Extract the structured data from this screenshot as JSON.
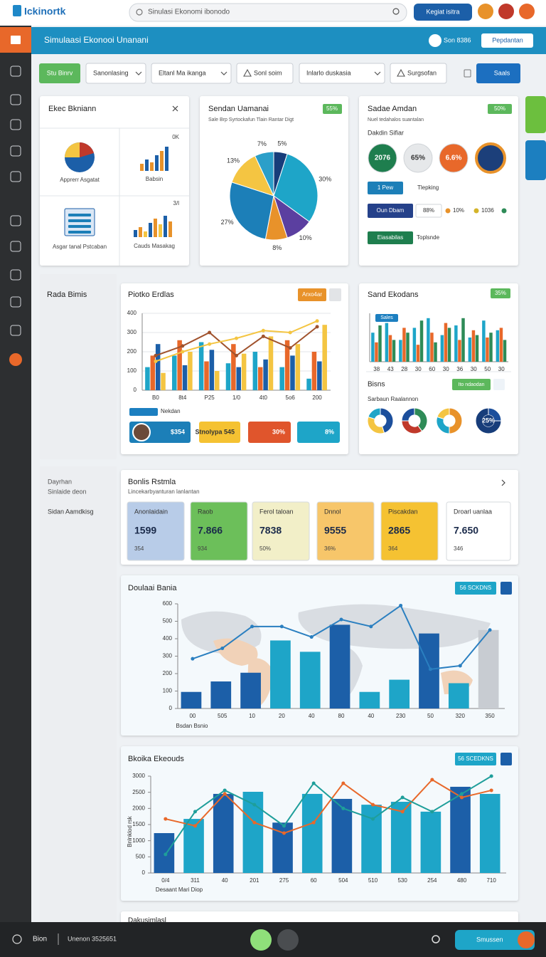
{
  "header": {
    "logo": "Ickinortk",
    "search": "Sinulasi Ekonomi ibonodo",
    "button": "Kegiat isitra"
  },
  "banner": {
    "title": "Simulaasi Ekonooi Unanani",
    "user": "Son 8386",
    "button": "Pepdantan"
  },
  "filters": {
    "button": "Stu Binrv",
    "dropdowns": [
      "Sanonlasing",
      "Eltanl Ma ikanga",
      "Inlarlo duskasia"
    ],
    "inputs": [
      "Sonl soim",
      "Surgsofan"
    ],
    "action": "Saals"
  },
  "overview": {
    "title": "Ekec Bkniann",
    "tiles": [
      {
        "label": "Apprerr Asgatat"
      },
      {
        "label": "Babsin",
        "note": "0K"
      },
      {
        "label": "Asgar tanal Pstcaban"
      },
      {
        "label": "Cauds Masakag",
        "note": "3/l"
      }
    ]
  },
  "summary": {
    "title": "Sadae Amdan",
    "badge": "50%",
    "subtitle": "Nuel tedahalos suantalan",
    "heading": "Dakdin Sifiar",
    "circles": [
      "2076",
      "65%",
      "6.6%"
    ],
    "rows": [
      {
        "button": "1 Pew",
        "text": "Tlepking"
      },
      {
        "button": "Oun Dbam",
        "text": "88%",
        "legend": [
          "10%",
          "1036"
        ]
      },
      {
        "button": "Eiasabilas",
        "text": "Toplsnde"
      }
    ]
  },
  "side_labels": [
    "Rada Bimis",
    "Dayrhan",
    "Sinlaide deon",
    "Sidan Aamdkisg"
  ],
  "trend_footer": {
    "tag": "Nekdan",
    "stats": [
      "$354",
      "Stnolypa 545",
      "30%",
      "8%"
    ]
  },
  "business": {
    "title": "Bisns",
    "button": "Ito ndaodan",
    "subtitle": "Sarbaun Raalannon"
  },
  "kpis": {
    "title": "Bonlis Rstmla",
    "subtitle": "Lincekarbyanturan lanlantan",
    "tiles": [
      {
        "label": "Anonlaidain",
        "value": "1599",
        "note": "354"
      },
      {
        "label": "Raob",
        "value": "7.866",
        "note": "934"
      },
      {
        "label": "Ferol taloan",
        "value": "7838",
        "note": "50%"
      },
      {
        "label": "Dnnol",
        "value": "9555",
        "note": "36%"
      },
      {
        "label": "Piscakdan",
        "value": "2865",
        "note": "364"
      },
      {
        "label": "Droarl uanlaa",
        "value": "7.650",
        "note": "346"
      }
    ]
  },
  "partial_card": "Dakusimlasl",
  "footer": {
    "left": "Bion",
    "info": "Unenon 3525651",
    "button": "Smussen"
  },
  "chart_data": [
    {
      "type": "pie",
      "title": "Sendan Uamanai",
      "subtitle": "Sale Brp Syrtockafun Tlain Rantar Digt",
      "badge": "55%",
      "values": [
        5,
        30,
        10,
        8,
        27,
        13,
        7
      ],
      "value_labels": [
        "5%",
        "30%",
        "10%",
        "8%",
        "27%",
        "13%",
        "7%"
      ],
      "colors": [
        "#173d7a",
        "#1ea5c8",
        "#5b3fa0",
        "#e8922a",
        "#1c7fb8",
        "#f4c542",
        "#2b9fc9"
      ]
    },
    {
      "type": "bar",
      "title": "Piotko Erdlas",
      "button": "Arxo4ar",
      "grid": true,
      "categories": [
        "B0",
        "8t4",
        "P25",
        "1/0",
        "4t0",
        "5o6",
        "200"
      ],
      "ylim": [
        0,
        400
      ],
      "yticks": [
        0,
        100,
        200,
        300,
        400
      ],
      "series": [
        {
          "color": "#1ea5c8",
          "values": [
            120,
            180,
            250,
            140,
            200,
            120,
            60
          ]
        },
        {
          "color": "#e8682a",
          "values": [
            180,
            260,
            150,
            240,
            120,
            260,
            200
          ]
        },
        {
          "color": "#1c5fa8",
          "values": [
            240,
            130,
            210,
            120,
            160,
            180,
            150
          ]
        },
        {
          "color": "#f4c542",
          "values": [
            90,
            200,
            100,
            190,
            280,
            240,
            340
          ]
        },
        {
          "type": "line",
          "color": "#a0522d",
          "values": [
            180,
            230,
            300,
            180,
            280,
            220,
            330
          ]
        },
        {
          "type": "line",
          "color": "#f4c542",
          "values": [
            150,
            200,
            240,
            270,
            310,
            300,
            360
          ]
        }
      ]
    },
    {
      "type": "bar",
      "title": "Sand Ekodans",
      "badge": "35%",
      "tag": "Sales",
      "grid": false,
      "categories": [
        "38",
        "43",
        "28",
        "30",
        "60",
        "30",
        "36",
        "30",
        "50",
        "30"
      ],
      "ylim": [
        0,
        100
      ],
      "series": [
        {
          "color": "#1ea5c8",
          "values": [
            60,
            80,
            45,
            70,
            90,
            55,
            75,
            50,
            85,
            65
          ]
        },
        {
          "color": "#e8682a",
          "values": [
            40,
            55,
            70,
            35,
            60,
            80,
            45,
            65,
            50,
            70
          ]
        },
        {
          "color": "#2e8b57",
          "values": [
            75,
            45,
            60,
            85,
            40,
            70,
            90,
            55,
            60,
            45
          ]
        }
      ]
    },
    {
      "type": "pie",
      "donut": true,
      "values": [
        45,
        35,
        20
      ],
      "colors": [
        "#1c4f9c",
        "#f4c542",
        "#1ea5c8"
      ]
    },
    {
      "type": "pie",
      "donut": true,
      "values": [
        40,
        35,
        25
      ],
      "colors": [
        "#2e8b57",
        "#c0392b",
        "#1c4f9c"
      ]
    },
    {
      "type": "pie",
      "donut": true,
      "values": [
        50,
        30,
        20
      ],
      "colors": [
        "#e8922a",
        "#1ea5c8",
        "#f4c542"
      ]
    },
    {
      "type": "pie",
      "donut": true,
      "values": [
        25,
        75
      ],
      "value_labels": [
        "25%",
        null
      ],
      "colors": [
        "#1c4f9c",
        "#173d7a"
      ]
    },
    {
      "type": "bar",
      "title": "Doulaai Bania",
      "button": "56 SCKDNS",
      "x_label": "Bsdan Bsnio",
      "grid": false,
      "categories": [
        "00",
        "505",
        "10",
        "20",
        "40",
        "80",
        "40",
        "230",
        "50",
        "320",
        "350"
      ],
      "ylim": [
        0,
        600
      ],
      "yticks": [
        0,
        100,
        200,
        300,
        400,
        500,
        600
      ],
      "series": [
        {
          "colors": [
            "#1c5fa8",
            "#1c5fa8",
            "#1c5fa8",
            "#1ea5c8",
            "#1ea5c8",
            "#1c5fa8",
            "#1ea5c8",
            "#1ea5c8",
            "#1c5fa8",
            "#1ea5c8",
            "#c8ccd2"
          ],
          "values": [
            95,
            155,
            205,
            390,
            325,
            480,
            95,
            165,
            430,
            145,
            450
          ]
        },
        {
          "type": "line",
          "color": "#2a7fc0",
          "values": [
            285,
            345,
            470,
            470,
            410,
            510,
            470,
            590,
            225,
            245,
            450
          ]
        }
      ]
    },
    {
      "type": "bar",
      "title": "Bkoika Ekeouds",
      "button": "56 SCEDKNS",
      "x_label": "Desaant Mari Diop",
      "y_label": "Bnlnklod rsk",
      "grid": false,
      "categories": [
        "0/4",
        "311",
        "40",
        "201",
        "275",
        "60",
        "504",
        "510",
        "530",
        "254",
        "480",
        "710"
      ],
      "ylim": [
        0,
        3000
      ],
      "yticks": [
        0,
        500,
        1000,
        1500,
        2000,
        2500,
        3000
      ],
      "series": [
        {
          "colors": [
            "#1c5fa8",
            "#1ea5c8",
            "#1c5fa8",
            "#1ea5c8",
            "#1c5fa8",
            "#1ea5c8",
            "#1c5fa8",
            "#1ea5c8",
            "#1ea5c8",
            "#1ea5c8",
            "#1c5fa8",
            "#1ea5c8"
          ],
          "values": [
            1235,
            1675,
            2450,
            2515,
            1560,
            2450,
            2295,
            2115,
            2205,
            1900,
            2670,
            2450
          ]
        },
        {
          "type": "line",
          "color": "#e8682a",
          "values": [
            1675,
            1460,
            2450,
            1560,
            1235,
            1560,
            2780,
            2115,
            1900,
            2890,
            2340,
            2560
          ]
        },
        {
          "type": "line",
          "color": "#1e9e9a",
          "values": [
            575,
            1900,
            2560,
            2115,
            1460,
            2780,
            2000,
            1675,
            2340,
            1900,
            2450,
            3000
          ]
        }
      ]
    }
  ]
}
